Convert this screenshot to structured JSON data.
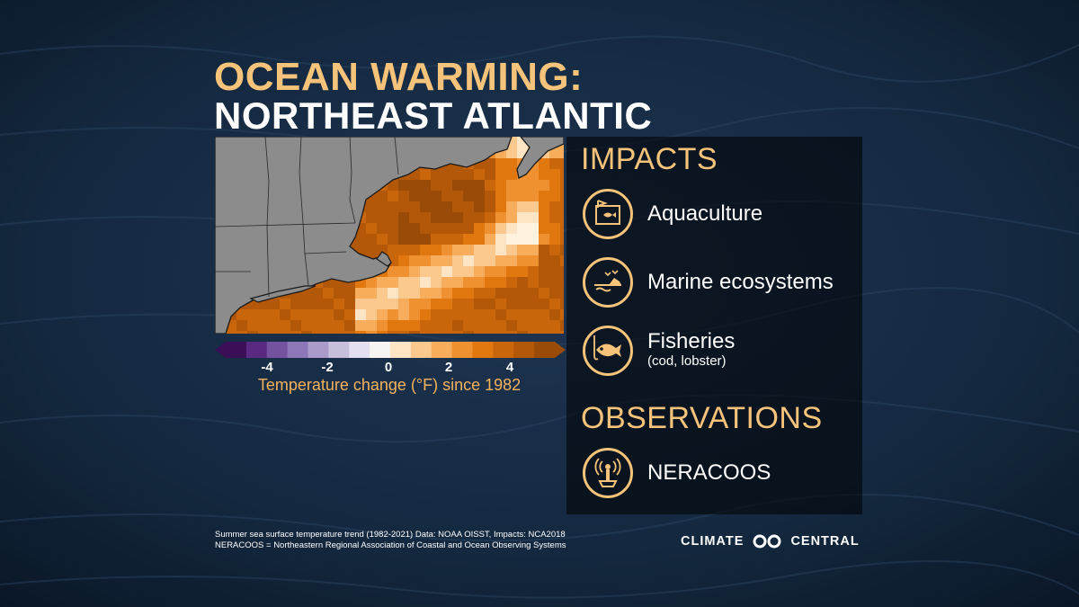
{
  "title": {
    "line1": "OCEAN WARMING:",
    "line2": "NORTHEAST ATLANTIC"
  },
  "colorbar": {
    "ticks": [
      "-4",
      "-2",
      "0",
      "2",
      "4"
    ],
    "caption": "Temperature change (°F) since 1982",
    "colors": [
      "#3b0f57",
      "#5a2a82",
      "#7452a0",
      "#8d77b8",
      "#aa9bcb",
      "#c7bfdc",
      "#e3def0",
      "#f7f4f2",
      "#fde4c4",
      "#fbc98e",
      "#f8ad5d",
      "#f09131",
      "#e0770f",
      "#c9650a",
      "#b25808",
      "#9a4b07"
    ]
  },
  "impacts": {
    "heading": "IMPACTS",
    "items": [
      {
        "label": "Aquaculture",
        "icon": "aquaculture-icon"
      },
      {
        "label": "Marine ecosystems",
        "icon": "marine-ecosystems-icon"
      },
      {
        "label": "Fisheries",
        "sub": "(cod, lobster)",
        "icon": "fish-icon"
      }
    ]
  },
  "observations": {
    "heading": "OBSERVATIONS",
    "items": [
      {
        "label": "NERACOOS",
        "icon": "buoy-icon"
      }
    ]
  },
  "footnote": {
    "line1": "Summer sea surface temperature trend (1982-2021) Data: NOAA OISST, Impacts: NCA2018",
    "line2": "NERACOOS = Northeastern Regional Association of Coastal and Ocean Observing Systems"
  },
  "brand": {
    "left": "CLIMATE",
    "right": "CENTRAL"
  },
  "colors": {
    "accent": "#f6c37a",
    "land": "#8c8c8c",
    "ocean_warm": "#c9650a"
  }
}
